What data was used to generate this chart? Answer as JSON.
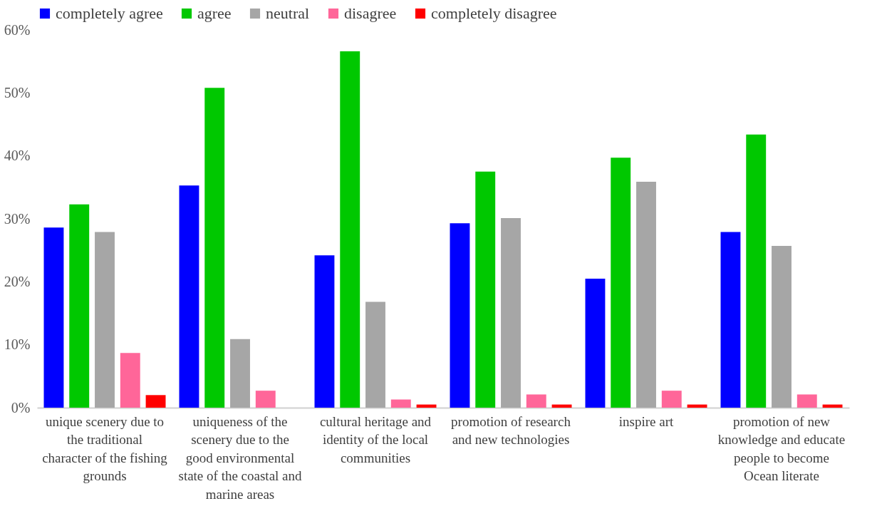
{
  "chart_data": {
    "type": "bar",
    "categories": [
      "unique scenery due to the traditional character of the fishing grounds",
      "uniqueness of the scenery due to the good environmental state of the coastal and marine areas",
      "cultural heritage and identity of the local communities",
      "promotion of research and new technologies",
      "inspire art",
      "promotion of new knowledge and educate people to become Ocean literate"
    ],
    "series": [
      {
        "name": "completely agree",
        "color": "#0000ff",
        "values": [
          28.6,
          35.3,
          24.2,
          29.3,
          20.5,
          27.9
        ]
      },
      {
        "name": "agree",
        "color": "#00c800",
        "values": [
          32.3,
          50.8,
          56.6,
          37.5,
          39.7,
          43.4
        ]
      },
      {
        "name": "neutral",
        "color": "#a6a6a6",
        "values": [
          27.9,
          10.9,
          16.8,
          30.1,
          35.9,
          25.7
        ]
      },
      {
        "name": "disagree",
        "color": "#ff6699",
        "values": [
          8.7,
          2.7,
          1.3,
          2.1,
          2.7,
          2.1
        ]
      },
      {
        "name": "completely disagree",
        "color": "#ff0000",
        "values": [
          2.0,
          null,
          0.5,
          0.5,
          0.5,
          0.5
        ]
      }
    ],
    "ylim": [
      0,
      60
    ],
    "yticks": [
      {
        "value": 0,
        "label": "0%"
      },
      {
        "value": 10,
        "label": "10%"
      },
      {
        "value": 20,
        "label": "20%"
      },
      {
        "value": 30,
        "label": "30%"
      },
      {
        "value": 40,
        "label": "40%"
      },
      {
        "value": 50,
        "label": "50%"
      },
      {
        "value": 60,
        "label": "60%"
      }
    ],
    "grid": false,
    "legend": "top"
  }
}
